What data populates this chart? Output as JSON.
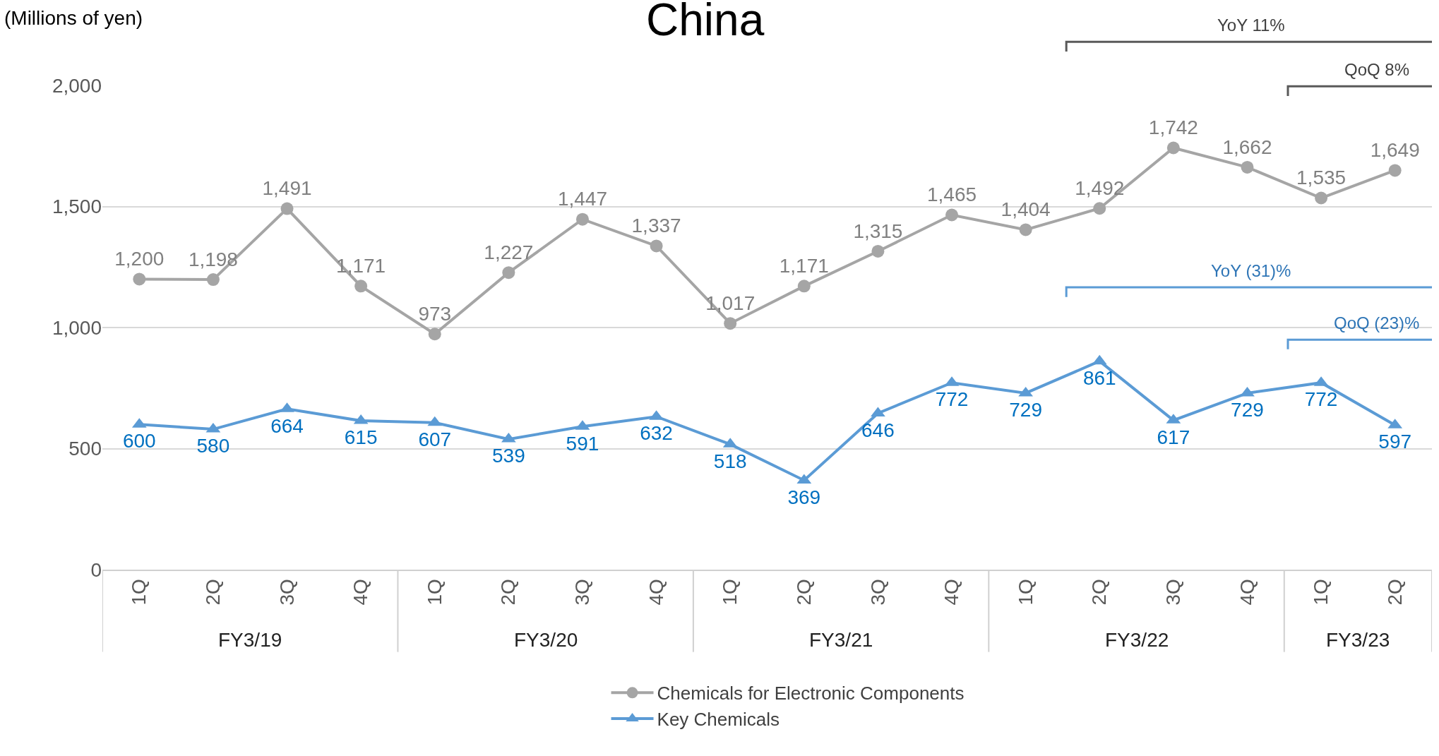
{
  "chart_data": {
    "type": "line",
    "title": "China",
    "ylabel": "(Millions of yen)",
    "categories": [
      "1Q",
      "2Q",
      "3Q",
      "4Q",
      "1Q",
      "2Q",
      "3Q",
      "4Q",
      "1Q",
      "2Q",
      "3Q",
      "4Q",
      "1Q",
      "2Q",
      "3Q",
      "4Q",
      "1Q",
      "2Q"
    ],
    "series": [
      {
        "name": "Chemicals for Electronic Components",
        "color": "#a5a5a5",
        "marker": "circle",
        "values": [
          1200,
          1198,
          1491,
          1171,
          973,
          1227,
          1447,
          1337,
          1017,
          1171,
          1315,
          1465,
          1404,
          1492,
          1742,
          1662,
          1535,
          1649
        ],
        "value_labels": [
          "1,200",
          "1,198",
          "1,491",
          "1,171",
          "973",
          "1,227",
          "1,447",
          "1,337",
          "1,017",
          "1,171",
          "1,315",
          "1,465",
          "1,404",
          "1,492",
          "1,742",
          "1,662",
          "1,535",
          "1,649"
        ]
      },
      {
        "name": "Key Chemicals",
        "color": "#5b9bd5",
        "marker": "triangle",
        "values": [
          600,
          580,
          664,
          615,
          607,
          539,
          591,
          632,
          518,
          369,
          646,
          772,
          729,
          861,
          617,
          729,
          772,
          597
        ],
        "value_labels": [
          "600",
          "580",
          "664",
          "615",
          "607",
          "539",
          "591",
          "632",
          "518",
          "369",
          "646",
          "772",
          "729",
          "861",
          "617",
          "729",
          "772",
          "597"
        ]
      }
    ],
    "ylim": [
      0,
      2000
    ],
    "yticks": [
      0,
      {
        "value": 500,
        "label": "500"
      },
      {
        "value": 1000,
        "label": "1,000"
      },
      {
        "value": 1500,
        "label": "1,500"
      },
      {
        "value": 2000,
        "label": "2,000"
      }
    ],
    "grid": "y",
    "legend": "bottom",
    "line_style": "solid",
    "annotations": [
      "FY3/19",
      "FY3/20",
      "FY3/21",
      "FY3/22",
      "FY3/23",
      "YoY 11%",
      "QoQ 8%",
      "YoY (31)%",
      "QoQ (23)%"
    ]
  }
}
